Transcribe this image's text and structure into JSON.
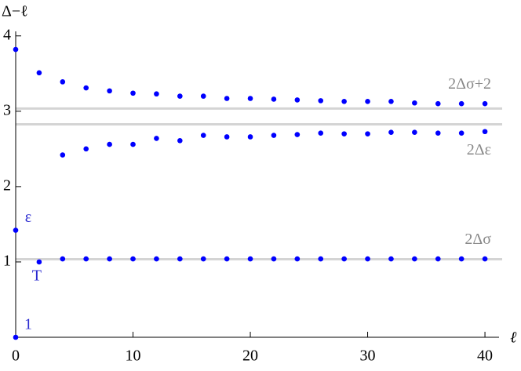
{
  "chart_data": {
    "type": "scatter",
    "y_label": "Δ−ℓ",
    "x_label": "ℓ",
    "xlim": [
      0,
      41.2
    ],
    "ylim": [
      0,
      4.06
    ],
    "xticks": [
      0,
      10,
      20,
      30,
      40
    ],
    "yticks": [
      1,
      2,
      3,
      4
    ],
    "hlines": [
      {
        "value": 3.036,
        "label": "2Δσ+2"
      },
      {
        "value": 2.826,
        "label": "2Δε"
      },
      {
        "value": 1.036,
        "label": "2Δσ"
      }
    ],
    "series": [
      {
        "color": "#0000ff",
        "x": [
          0,
          0,
          2,
          4,
          6,
          8,
          10,
          12,
          14,
          16,
          18,
          20,
          22,
          24,
          26,
          28,
          30,
          32,
          34,
          36,
          38,
          40
        ],
        "values": [
          0,
          1.42,
          1.0,
          1.04,
          1.04,
          1.04,
          1.04,
          1.04,
          1.04,
          1.04,
          1.04,
          1.04,
          1.04,
          1.04,
          1.04,
          1.04,
          1.04,
          1.04,
          1.04,
          1.04,
          1.04,
          1.04
        ],
        "point_labels": [
          "1",
          "ε",
          "T",
          null,
          null,
          null,
          null,
          null,
          null,
          null,
          null,
          null,
          null,
          null,
          null,
          null,
          null,
          null,
          null,
          null,
          null,
          null
        ]
      },
      {
        "color": "#0000ff",
        "x": [
          0,
          2,
          4,
          6,
          8,
          10,
          12,
          14,
          16,
          18,
          20,
          22,
          24,
          26,
          28,
          30,
          32,
          34,
          36,
          38,
          40
        ],
        "values": [
          3.82,
          3.51,
          3.39,
          3.31,
          3.27,
          3.24,
          3.23,
          3.2,
          3.2,
          3.17,
          3.17,
          3.16,
          3.15,
          3.14,
          3.13,
          3.13,
          3.13,
          3.11,
          3.1,
          3.1,
          3.1
        ]
      },
      {
        "color": "#0000ff",
        "x": [
          4,
          6,
          8,
          10,
          12,
          14,
          16,
          18,
          20,
          22,
          24,
          26,
          28,
          30,
          32,
          34,
          36,
          38,
          40
        ],
        "values": [
          2.42,
          2.5,
          2.56,
          2.56,
          2.64,
          2.61,
          2.68,
          2.66,
          2.66,
          2.68,
          2.69,
          2.71,
          2.7,
          2.7,
          2.72,
          2.72,
          2.71,
          2.71,
          2.73
        ]
      }
    ]
  }
}
